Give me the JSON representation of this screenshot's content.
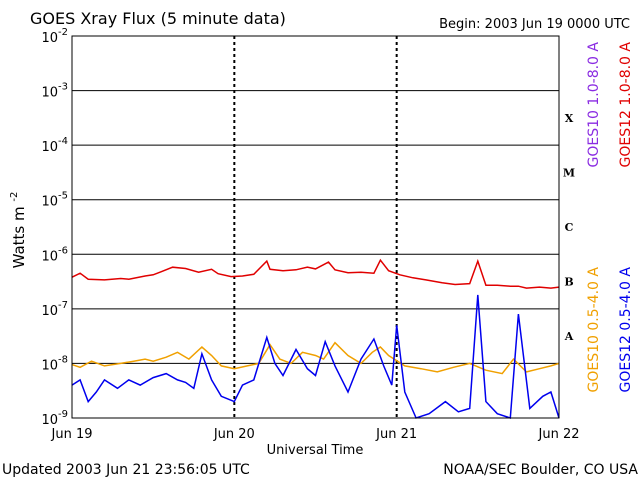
{
  "chart_data": {
    "type": "line",
    "title": "GOES Xray Flux (5 minute data)",
    "begin_label": "Begin:  2003 Jun 19 0000 UTC",
    "ylabel": "Watts m",
    "ylabel_sup": "-2",
    "xlabel": "Universal Time",
    "updated_label": "Updated 2003 Jun 21 23:56:05 UTC",
    "credit_label": "NOAA/SEC Boulder, CO USA",
    "y_scale": "log",
    "ylim": [
      1e-09,
      0.01
    ],
    "y_ticks": [
      {
        "exp": -9,
        "label_base": "10",
        "label_exp": "-9"
      },
      {
        "exp": -8,
        "label_base": "10",
        "label_exp": "-8"
      },
      {
        "exp": -7,
        "label_base": "10",
        "label_exp": "-7"
      },
      {
        "exp": -6,
        "label_base": "10",
        "label_exp": "-6"
      },
      {
        "exp": -5,
        "label_base": "10",
        "label_exp": "-5"
      },
      {
        "exp": -4,
        "label_base": "10",
        "label_exp": "-4"
      },
      {
        "exp": -3,
        "label_base": "10",
        "label_exp": "-3"
      },
      {
        "exp": -2,
        "label_base": "10",
        "label_exp": "-2"
      }
    ],
    "x_ticks": [
      "Jun 19",
      "Jun 20",
      "Jun 21",
      "Jun 22"
    ],
    "xlim_days": [
      0,
      3
    ],
    "grid": true,
    "flare_classes": [
      {
        "label": "A",
        "exp": -7.5
      },
      {
        "label": "B",
        "exp": -6.5
      },
      {
        "label": "C",
        "exp": -5.5
      },
      {
        "label": "M",
        "exp": -4.5
      },
      {
        "label": "X",
        "exp": -3.5
      }
    ],
    "legend": [
      {
        "name": "GOES10 1.0-8.0 A",
        "color": "#8a2be2"
      },
      {
        "name": "GOES12 1.0-8.0 A",
        "color": "#e00000"
      },
      {
        "name": "GOES10 0.5-4.0 A",
        "color": "#f0a000"
      },
      {
        "name": "GOES12 0.5-4.0 A",
        "color": "#0000ee"
      }
    ],
    "series": [
      {
        "name": "GOES12 1.0-8.0 A",
        "color": "#e00000",
        "x": [
          0,
          0.05,
          0.1,
          0.2,
          0.3,
          0.35,
          0.45,
          0.5,
          0.55,
          0.62,
          0.7,
          0.78,
          0.86,
          0.9,
          0.98,
          1.05,
          1.12,
          1.2,
          1.22,
          1.3,
          1.38,
          1.45,
          1.5,
          1.58,
          1.62,
          1.7,
          1.78,
          1.86,
          1.9,
          1.95,
          2.02,
          2.1,
          2.18,
          2.28,
          2.36,
          2.45,
          2.5,
          2.55,
          2.62,
          2.7,
          2.75,
          2.8,
          2.88,
          2.95,
          3.0
        ],
        "y": [
          3.8e-07,
          4.5e-07,
          3.5e-07,
          3.4e-07,
          3.6e-07,
          3.5e-07,
          4e-07,
          4.2e-07,
          4.8e-07,
          5.8e-07,
          5.5e-07,
          4.7e-07,
          5.3e-07,
          4.4e-07,
          3.9e-07,
          4e-07,
          4.3e-07,
          7.5e-07,
          5.3e-07,
          5e-07,
          5.2e-07,
          5.8e-07,
          5.4e-07,
          7.2e-07,
          5.2e-07,
          4.6e-07,
          4.7e-07,
          4.5e-07,
          7.8e-07,
          5e-07,
          4.2e-07,
          3.7e-07,
          3.4e-07,
          3e-07,
          2.8e-07,
          2.9e-07,
          7.5e-07,
          2.7e-07,
          2.7e-07,
          2.6e-07,
          2.6e-07,
          2.4e-07,
          2.5e-07,
          2.4e-07,
          2.5e-07
        ]
      },
      {
        "name": "GOES10 0.5-4.0 A",
        "color": "#f0a000",
        "x": [
          0,
          0.05,
          0.12,
          0.2,
          0.3,
          0.38,
          0.45,
          0.5,
          0.58,
          0.65,
          0.72,
          0.8,
          0.86,
          0.92,
          1.0,
          1.08,
          1.15,
          1.22,
          1.28,
          1.35,
          1.42,
          1.5,
          1.55,
          1.62,
          1.7,
          1.78,
          1.85,
          1.9,
          1.95,
          2.05,
          2.15,
          2.25,
          2.35,
          2.45,
          2.55,
          2.65,
          2.72,
          2.8,
          2.88,
          2.95,
          3.0
        ],
        "y": [
          9.5e-09,
          8.5e-09,
          1.1e-08,
          9e-09,
          1e-08,
          1.1e-08,
          1.2e-08,
          1.1e-08,
          1.3e-08,
          1.6e-08,
          1.2e-08,
          2e-08,
          1.4e-08,
          9e-09,
          8e-09,
          9e-09,
          1e-08,
          2.2e-08,
          1.2e-08,
          1e-08,
          1.6e-08,
          1.4e-08,
          1.2e-08,
          2.4e-08,
          1.4e-08,
          1e-08,
          1.6e-08,
          2e-08,
          1.4e-08,
          9e-09,
          8e-09,
          7e-09,
          8.5e-09,
          1e-08,
          7.5e-09,
          6.5e-09,
          1.2e-08,
          7e-09,
          8e-09,
          9e-09,
          1e-08
        ]
      },
      {
        "name": "GOES12 0.5-4.0 A",
        "color": "#0000ee",
        "x": [
          0,
          0.05,
          0.1,
          0.15,
          0.2,
          0.28,
          0.35,
          0.42,
          0.5,
          0.58,
          0.65,
          0.7,
          0.75,
          0.8,
          0.86,
          0.92,
          1.0,
          1.05,
          1.12,
          1.2,
          1.25,
          1.3,
          1.38,
          1.45,
          1.5,
          1.56,
          1.62,
          1.7,
          1.78,
          1.86,
          1.92,
          1.97,
          2.0,
          2.05,
          2.12,
          2.2,
          2.3,
          2.38,
          2.45,
          2.5,
          2.55,
          2.62,
          2.7,
          2.75,
          2.82,
          2.9,
          2.95,
          3.0
        ],
        "y": [
          4e-09,
          5e-09,
          2e-09,
          3e-09,
          5e-09,
          3.5e-09,
          5e-09,
          4e-09,
          5.5e-09,
          6.5e-09,
          5e-09,
          4.5e-09,
          3.5e-09,
          1.5e-08,
          5e-09,
          2.5e-09,
          2e-09,
          4e-09,
          5e-09,
          3e-08,
          1e-08,
          6e-09,
          1.8e-08,
          8e-09,
          6e-09,
          2.5e-08,
          9e-09,
          3e-09,
          1.2e-08,
          2.8e-08,
          9e-09,
          4e-09,
          5e-08,
          3e-09,
          1e-09,
          1.2e-09,
          2e-09,
          1.3e-09,
          1.5e-09,
          1.8e-07,
          2e-09,
          1.2e-09,
          1e-09,
          8e-08,
          1.5e-09,
          2.5e-09,
          3e-09,
          1e-09
        ]
      }
    ]
  }
}
